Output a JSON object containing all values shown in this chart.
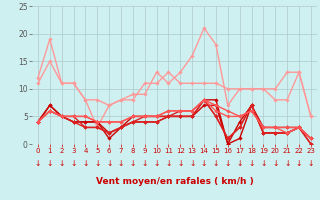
{
  "title": "",
  "xlabel": "Vent moyen/en rafales ( km/h )",
  "background_color": "#cff0f0",
  "grid_color": "#b0c8c8",
  "xlim": [
    -0.5,
    23.5
  ],
  "ylim": [
    0,
    25
  ],
  "yticks": [
    0,
    5,
    10,
    15,
    20,
    25
  ],
  "xticks": [
    0,
    1,
    2,
    3,
    4,
    5,
    6,
    7,
    8,
    9,
    10,
    11,
    12,
    13,
    14,
    15,
    16,
    17,
    18,
    19,
    20,
    21,
    22,
    23
  ],
  "series": [
    {
      "data": [
        11,
        15,
        11,
        11,
        8,
        8,
        7,
        8,
        8,
        11,
        11,
        13,
        11,
        11,
        11,
        11,
        10,
        10,
        10,
        10,
        8,
        8,
        13,
        5
      ],
      "color": "#ff9999",
      "lw": 1.0
    },
    {
      "data": [
        12,
        19,
        11,
        11,
        8,
        3,
        7,
        8,
        9,
        9,
        13,
        11,
        13,
        16,
        21,
        18,
        7,
        10,
        10,
        10,
        10,
        13,
        13,
        5
      ],
      "color": "#ff9999",
      "lw": 1.0
    },
    {
      "data": [
        4,
        7,
        5,
        4,
        4,
        4,
        2,
        3,
        5,
        5,
        5,
        5,
        5,
        5,
        8,
        8,
        0,
        1,
        7,
        3,
        3,
        3,
        3,
        1
      ],
      "color": "#cc0000",
      "lw": 1.0
    },
    {
      "data": [
        4,
        7,
        5,
        4,
        4,
        4,
        1,
        3,
        4,
        4,
        4,
        5,
        5,
        5,
        7,
        7,
        0,
        4,
        7,
        2,
        2,
        2,
        3,
        0
      ],
      "color": "#cc0000",
      "lw": 1.0
    },
    {
      "data": [
        4,
        6,
        5,
        4,
        3,
        3,
        2,
        3,
        4,
        4,
        4,
        5,
        5,
        5,
        8,
        5,
        1,
        3,
        7,
        2,
        2,
        2,
        3,
        0
      ],
      "color": "#dd2222",
      "lw": 1.0
    },
    {
      "data": [
        4,
        6,
        5,
        5,
        3,
        3,
        2,
        3,
        4,
        5,
        5,
        5,
        6,
        6,
        8,
        5,
        1,
        3,
        7,
        2,
        2,
        2,
        3,
        1
      ],
      "color": "#dd2222",
      "lw": 1.0
    },
    {
      "data": [
        4,
        6,
        5,
        5,
        5,
        4,
        4,
        4,
        5,
        5,
        5,
        6,
        6,
        6,
        8,
        6,
        5,
        5,
        6,
        3,
        3,
        2,
        3,
        1
      ],
      "color": "#ff5555",
      "lw": 1.0
    },
    {
      "data": [
        4,
        6,
        5,
        5,
        5,
        4,
        4,
        4,
        5,
        5,
        5,
        6,
        6,
        6,
        8,
        7,
        6,
        5,
        6,
        3,
        3,
        3,
        3,
        1
      ],
      "color": "#ff5555",
      "lw": 1.0
    }
  ],
  "marker": "D",
  "markersize": 1.8
}
